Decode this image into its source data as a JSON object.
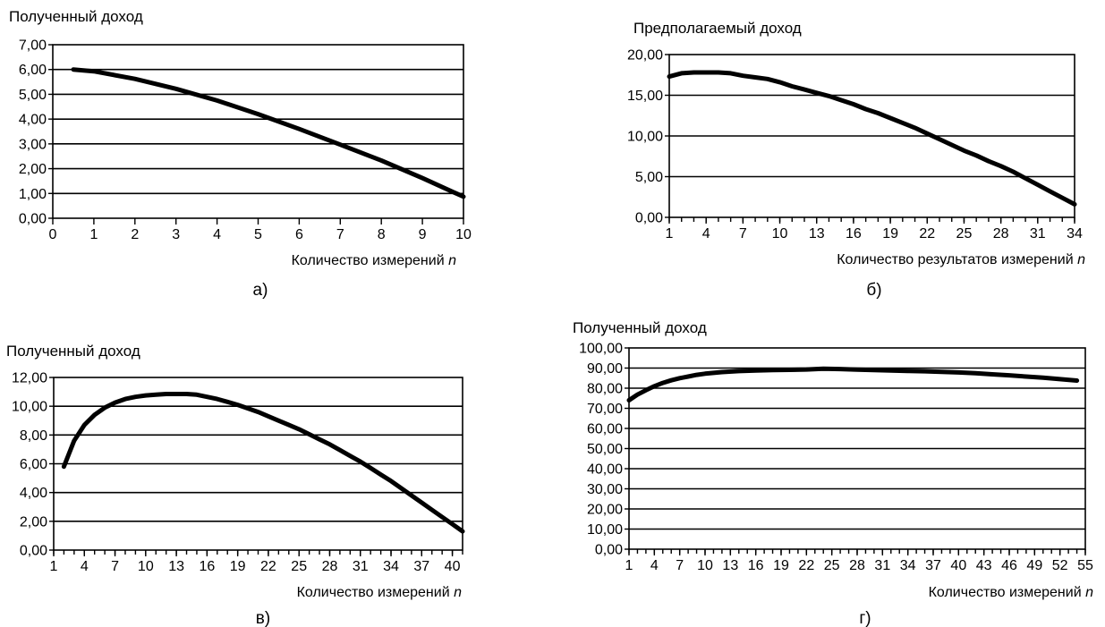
{
  "chart_data": [
    {
      "type": "line",
      "title": "Полученный доход",
      "xlabel": "Количество измерений",
      "xlabel_var": "n",
      "panel_label": "а)",
      "xlim": [
        0,
        10
      ],
      "ylim": [
        0,
        7
      ],
      "x_ticks": [
        0,
        1,
        2,
        3,
        4,
        5,
        6,
        7,
        8,
        9,
        10
      ],
      "x_tick_labels": [
        "0",
        "1",
        "2",
        "3",
        "4",
        "5",
        "6",
        "7",
        "8",
        "9",
        "10"
      ],
      "y_ticks": [
        0,
        1,
        2,
        3,
        4,
        5,
        6,
        7
      ],
      "y_tick_labels": [
        "0,00",
        "1,00",
        "2,00",
        "3,00",
        "4,00",
        "5,00",
        "6,00",
        "7,00"
      ],
      "grid": true,
      "x": [
        0.5,
        1,
        2,
        3,
        4,
        5,
        6,
        7,
        8,
        9,
        10
      ],
      "y": [
        6.0,
        5.93,
        5.62,
        5.22,
        4.75,
        4.2,
        3.6,
        2.97,
        2.33,
        1.62,
        0.87
      ]
    },
    {
      "type": "line",
      "title": "Предполагаемый доход",
      "xlabel": "Количество результатов измерений",
      "xlabel_var": "n",
      "panel_label": "б)",
      "xlim": [
        1,
        34
      ],
      "ylim": [
        0,
        20
      ],
      "x_ticks": [
        1,
        4,
        7,
        10,
        13,
        16,
        19,
        22,
        25,
        28,
        31,
        34
      ],
      "x_tick_labels": [
        "1",
        "4",
        "7",
        "10",
        "13",
        "16",
        "19",
        "22",
        "25",
        "28",
        "31",
        "34"
      ],
      "minor_x_step": 1,
      "y_ticks": [
        0,
        5,
        10,
        15,
        20
      ],
      "y_tick_labels": [
        "0,00",
        "5,00",
        "10,00",
        "15,00",
        "20,00"
      ],
      "grid": true,
      "x": [
        1,
        2,
        3,
        4,
        5,
        6,
        7,
        8,
        9,
        10,
        11,
        12,
        13,
        14,
        15,
        16,
        17,
        18,
        19,
        20,
        21,
        22,
        23,
        24,
        25,
        26,
        27,
        28,
        29,
        30,
        31,
        32,
        33,
        34
      ],
      "y": [
        17.3,
        17.7,
        17.8,
        17.8,
        17.8,
        17.7,
        17.4,
        17.2,
        17.0,
        16.6,
        16.1,
        15.7,
        15.3,
        14.9,
        14.4,
        13.9,
        13.3,
        12.8,
        12.2,
        11.6,
        11.0,
        10.3,
        9.6,
        8.9,
        8.2,
        7.6,
        6.9,
        6.3,
        5.6,
        4.8,
        4.0,
        3.2,
        2.4,
        1.6
      ]
    },
    {
      "type": "line",
      "title": "Полученный доход",
      "xlabel": "Количество измерений",
      "xlabel_var": "n",
      "panel_label": "в)",
      "xlim": [
        1,
        41
      ],
      "ylim": [
        0,
        12
      ],
      "x_ticks": [
        1,
        4,
        7,
        10,
        13,
        16,
        19,
        22,
        25,
        28,
        31,
        34,
        37,
        40
      ],
      "x_tick_labels": [
        "1",
        "4",
        "7",
        "10",
        "13",
        "16",
        "19",
        "22",
        "25",
        "28",
        "31",
        "34",
        "37",
        "40"
      ],
      "minor_x_step": 1,
      "y_ticks": [
        0,
        2,
        4,
        6,
        8,
        10,
        12
      ],
      "y_tick_labels": [
        "0,00",
        "2,00",
        "4,00",
        "6,00",
        "8,00",
        "10,00",
        "12,00"
      ],
      "grid": true,
      "x": [
        2,
        3,
        4,
        5,
        6,
        7,
        8,
        9,
        10,
        11,
        12,
        13,
        14,
        15,
        16,
        17,
        18,
        19,
        20,
        21,
        22,
        23,
        24,
        25,
        26,
        27,
        28,
        29,
        30,
        31,
        32,
        33,
        34,
        35,
        36,
        37,
        38,
        39,
        40,
        41
      ],
      "y": [
        5.8,
        7.6,
        8.7,
        9.4,
        9.9,
        10.25,
        10.5,
        10.65,
        10.75,
        10.8,
        10.85,
        10.85,
        10.85,
        10.8,
        10.65,
        10.5,
        10.3,
        10.1,
        9.85,
        9.6,
        9.3,
        9.0,
        8.7,
        8.4,
        8.05,
        7.7,
        7.35,
        6.95,
        6.55,
        6.15,
        5.7,
        5.25,
        4.8,
        4.3,
        3.8,
        3.3,
        2.8,
        2.3,
        1.8,
        1.3
      ]
    },
    {
      "type": "line",
      "title": "Полученный доход",
      "xlabel": "Количество измерений",
      "xlabel_var": "n",
      "panel_label": "г)",
      "xlim": [
        1,
        55
      ],
      "ylim": [
        0,
        100
      ],
      "x_ticks": [
        1,
        4,
        7,
        10,
        13,
        16,
        19,
        22,
        25,
        28,
        31,
        34,
        37,
        40,
        43,
        46,
        49,
        52,
        55
      ],
      "x_tick_labels": [
        "1",
        "4",
        "7",
        "10",
        "13",
        "16",
        "19",
        "22",
        "25",
        "28",
        "31",
        "34",
        "37",
        "40",
        "43",
        "46",
        "49",
        "52",
        "55"
      ],
      "minor_x_step": 1,
      "y_ticks": [
        0,
        10,
        20,
        30,
        40,
        50,
        60,
        70,
        80,
        90,
        100
      ],
      "y_tick_labels": [
        "0,00",
        "10,00",
        "20,00",
        "30,00",
        "40,00",
        "50,00",
        "60,00",
        "70,00",
        "80,00",
        "90,00",
        "100,00"
      ],
      "grid": true,
      "x": [
        1,
        2,
        3,
        4,
        5,
        6,
        7,
        8,
        9,
        10,
        12,
        14,
        16,
        18,
        20,
        22,
        24,
        26,
        28,
        30,
        32,
        34,
        36,
        38,
        40,
        42,
        44,
        46,
        48,
        50,
        52,
        54
      ],
      "y": [
        74,
        76.8,
        79,
        81,
        82.6,
        83.9,
        85,
        85.8,
        86.6,
        87.2,
        88,
        88.5,
        88.8,
        89,
        89.1,
        89.3,
        89.7,
        89.5,
        89.2,
        89.0,
        88.8,
        88.6,
        88.4,
        88.1,
        87.8,
        87.4,
        86.9,
        86.4,
        85.8,
        85.2,
        84.5,
        83.8
      ]
    }
  ]
}
